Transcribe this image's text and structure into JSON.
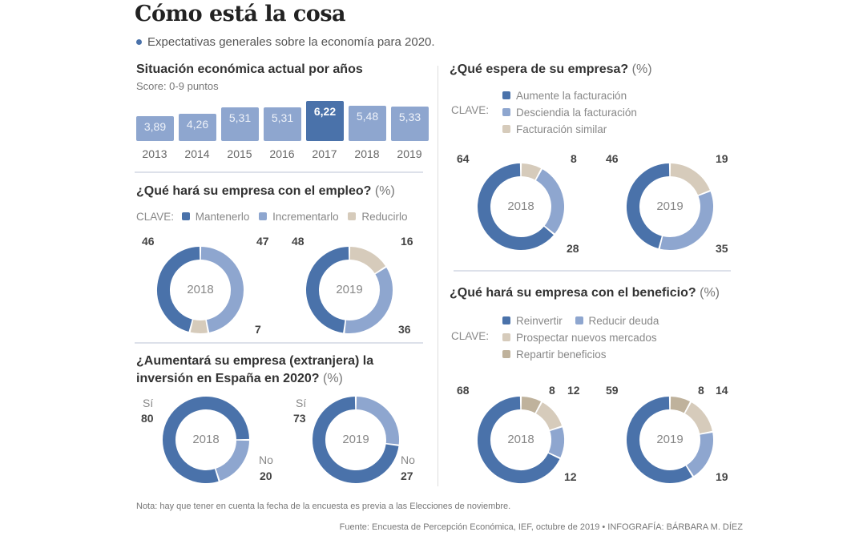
{
  "title": "Cómo está la cosa",
  "subtitle": "Expectativas generales sobre la economía para 2020.",
  "colors": {
    "dark_blue": "#4a72aa",
    "light_blue": "#8ea6cf",
    "tan": "#d6cbbb",
    "dark_tan": "#bfb29c"
  },
  "footer": {
    "note": "Nota: hay que tener en cuenta la fecha de la encuesta es previa a las Elecciones de noviembre.",
    "source": "Fuente: Encuesta de Percepción Económica, IEF, octubre de 2019 • INFOGRAFÍA: BÁRBARA M. DÍEZ"
  },
  "chart_data": [
    {
      "type": "bar",
      "title": "Situación económica actual por años",
      "subtitle": "Score: 0-9 puntos",
      "categories": [
        "2013",
        "2014",
        "2015",
        "2016",
        "2017",
        "2018",
        "2019"
      ],
      "labels": [
        "3,89",
        "4,26",
        "5,31",
        "5,31",
        "6,22",
        "5,48",
        "5,33"
      ],
      "values": [
        3.89,
        4.26,
        5.31,
        5.31,
        6.22,
        5.48,
        5.33
      ],
      "highlight": "2017",
      "ylim": [
        0,
        9
      ]
    },
    {
      "type": "pie",
      "title": "¿Qué hará su empresa con el empleo?",
      "unit": "(%)",
      "legend_label": "CLAVE:",
      "legend": [
        {
          "name": "Mantenerlo",
          "color": "#4a72aa"
        },
        {
          "name": "Incrementarlo",
          "color": "#8ea6cf"
        },
        {
          "name": "Reducirlo",
          "color": "#d6cbbb"
        }
      ],
      "donuts": [
        {
          "year": "2018",
          "segments": [
            {
              "name": "Incrementarlo",
              "value": 47,
              "color": "#8ea6cf"
            },
            {
              "name": "Reducirlo",
              "value": 7,
              "color": "#d6cbbb"
            },
            {
              "name": "Mantenerlo",
              "value": 46,
              "color": "#4a72aa"
            }
          ]
        },
        {
          "year": "2019",
          "segments": [
            {
              "name": "Reducirlo",
              "value": 16,
              "color": "#d6cbbb"
            },
            {
              "name": "Incrementarlo",
              "value": 36,
              "color": "#8ea6cf"
            },
            {
              "name": "Mantenerlo",
              "value": 48,
              "color": "#4a72aa"
            }
          ]
        }
      ]
    },
    {
      "type": "pie",
      "title_line1": "¿Aumentará su empresa (extranjera) la",
      "title_line2": "inversión en España en 2020?",
      "unit": "(%)",
      "donuts": [
        {
          "year": "2018",
          "segments": [
            {
              "name": "No",
              "value": 20,
              "color": "#8ea6cf",
              "offset": 25
            },
            {
              "name": "Sí",
              "value": 80,
              "color": "#4a72aa"
            }
          ]
        },
        {
          "year": "2019",
          "segments": [
            {
              "name": "No",
              "value": 27,
              "color": "#8ea6cf"
            },
            {
              "name": "Sí",
              "value": 73,
              "color": "#4a72aa"
            }
          ]
        }
      ],
      "labels": {
        "yes": "Sí",
        "no": "No"
      }
    },
    {
      "type": "pie",
      "title": "¿Qué espera de su empresa?",
      "unit": "(%)",
      "legend_label": "CLAVE:",
      "legend": [
        {
          "name": "Aumente la facturación",
          "color": "#4a72aa"
        },
        {
          "name": "Desciendia la facturación",
          "color": "#8ea6cf"
        },
        {
          "name": "Facturación similar",
          "color": "#d6cbbb"
        }
      ],
      "donuts": [
        {
          "year": "2018",
          "segments": [
            {
              "name": "Facturación similar",
              "value": 8,
              "color": "#d6cbbb"
            },
            {
              "name": "Descienda la facturación",
              "value": 28,
              "color": "#8ea6cf"
            },
            {
              "name": "Aumente la facturación",
              "value": 64,
              "color": "#4a72aa"
            }
          ]
        },
        {
          "year": "2019",
          "segments": [
            {
              "name": "Facturación similar",
              "value": 19,
              "color": "#d6cbbb"
            },
            {
              "name": "Descienda la facturación",
              "value": 35,
              "color": "#8ea6cf"
            },
            {
              "name": "Aumente la facturación",
              "value": 46,
              "color": "#4a72aa"
            }
          ]
        }
      ]
    },
    {
      "type": "pie",
      "title": "¿Qué hará su empresa con el beneficio?",
      "unit": "(%)",
      "legend_label": "CLAVE:",
      "legend": [
        {
          "name": "Reinvertir",
          "color": "#4a72aa"
        },
        {
          "name": "Reducir deuda",
          "color": "#8ea6cf"
        },
        {
          "name": "Prospectar nuevos mercados",
          "color": "#d6cbbb"
        },
        {
          "name": "Repartir beneficios",
          "color": "#bfb29c"
        }
      ],
      "donuts": [
        {
          "year": "2018",
          "segments": [
            {
              "name": "Repartir beneficios",
              "value": 8,
              "color": "#bfb29c"
            },
            {
              "name": "Prospectar nuevos mercados",
              "value": 12,
              "color": "#d6cbbb"
            },
            {
              "name": "Reducir deuda",
              "value": 12,
              "color": "#8ea6cf"
            },
            {
              "name": "Reinvertir",
              "value": 68,
              "color": "#4a72aa"
            }
          ]
        },
        {
          "year": "2019",
          "segments": [
            {
              "name": "Repartir beneficios",
              "value": 8,
              "color": "#bfb29c"
            },
            {
              "name": "Prospectar nuevos mercados",
              "value": 14,
              "color": "#d6cbbb"
            },
            {
              "name": "Reducir deuda",
              "value": 19,
              "color": "#8ea6cf"
            },
            {
              "name": "Reinvertir",
              "value": 59,
              "color": "#4a72aa"
            }
          ]
        }
      ]
    }
  ]
}
